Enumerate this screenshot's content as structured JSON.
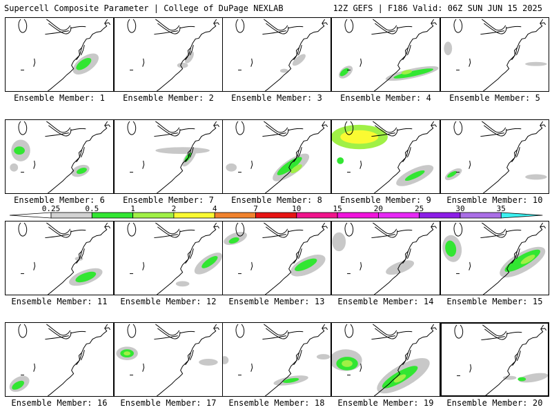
{
  "header": {
    "title": "Supercell Composite Parameter | College of DuPage NEXLAB",
    "run": "12Z GEFS | F186 Valid: 06Z SUN JUN 15 2025"
  },
  "colorbar": {
    "labels": [
      "0.25",
      "0.5",
      "1",
      "2",
      "4",
      "7",
      "10",
      "15",
      "20",
      "25",
      "30",
      "35"
    ],
    "colors": [
      "#ffffff",
      "#d2d2d2",
      "#32e632",
      "#a0f046",
      "#fafa32",
      "#f0822d",
      "#e61414",
      "#f0148c",
      "#f014dc",
      "#e628f5",
      "#8c1ee6",
      "#aa6ee6",
      "#3cf0f0"
    ]
  },
  "map_colors": {
    "low": "#c8c8c8",
    "green": "#32e632",
    "lime": "#a0f046",
    "yellow": "#fafa32",
    "coast": "#000000"
  },
  "members": [
    {
      "label": "Ensemble Member: 1",
      "selected": false
    },
    {
      "label": "Ensemble Member: 2",
      "selected": false
    },
    {
      "label": "Ensemble Member: 3",
      "selected": false
    },
    {
      "label": "Ensemble Member: 4",
      "selected": false
    },
    {
      "label": "Ensemble Member: 5",
      "selected": false
    },
    {
      "label": "Ensemble Member: 6",
      "selected": false
    },
    {
      "label": "Ensemble Member: 7",
      "selected": false
    },
    {
      "label": "Ensemble Member: 8",
      "selected": false
    },
    {
      "label": "Ensemble Member: 9",
      "selected": false
    },
    {
      "label": "Ensemble Member: 10",
      "selected": false
    },
    {
      "label": "Ensemble Member: 11",
      "selected": false
    },
    {
      "label": "Ensemble Member: 12",
      "selected": false
    },
    {
      "label": "Ensemble Member: 13",
      "selected": false
    },
    {
      "label": "Ensemble Member: 14",
      "selected": false
    },
    {
      "label": "Ensemble Member: 15",
      "selected": false
    },
    {
      "label": "Ensemble Member: 16",
      "selected": false
    },
    {
      "label": "Ensemble Member: 17",
      "selected": false
    },
    {
      "label": "Ensemble Member: 18",
      "selected": false
    },
    {
      "label": "Ensemble Member: 19",
      "selected": false
    },
    {
      "label": "Ensemble Member: 20",
      "selected": true
    }
  ]
}
